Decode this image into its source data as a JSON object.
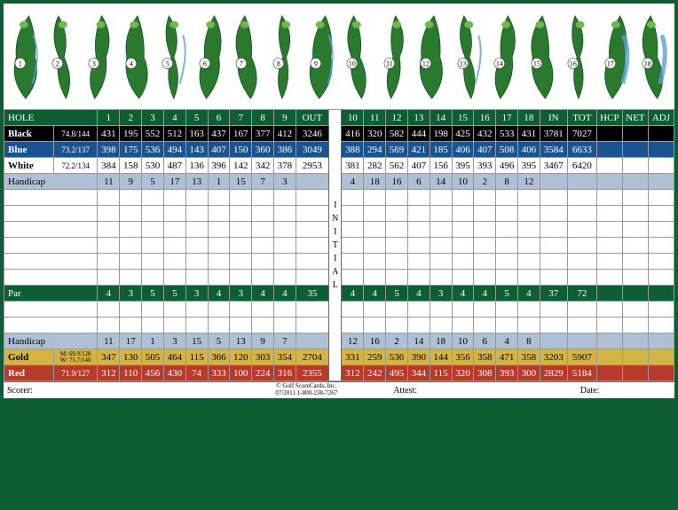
{
  "colors": {
    "header_green": "#0d5f33",
    "black_row": "#000000",
    "blue_row": "#1a5490",
    "white_row": "#ffffff",
    "handicap_row": "#b0c0d4",
    "par_row": "#0d5f33",
    "gold_row": "#d4b444",
    "red_row": "#b83a2a",
    "initial_bg": "#ffffff",
    "border": "#999999"
  },
  "header": {
    "label": "HOLE",
    "out": "OUT",
    "in": "IN",
    "tot": "TOT",
    "hcp": "HCP",
    "net": "NET",
    "adj": "ADJ",
    "initial": "INITIAL"
  },
  "holes_front": [
    "1",
    "2",
    "3",
    "4",
    "5",
    "6",
    "7",
    "8",
    "9"
  ],
  "holes_back": [
    "10",
    "11",
    "12",
    "13",
    "14",
    "15",
    "16",
    "17",
    "18"
  ],
  "tees": {
    "black": {
      "label": "Black",
      "rating": "74.8/144",
      "front": [
        "431",
        "195",
        "552",
        "512",
        "163",
        "437",
        "167",
        "377",
        "412"
      ],
      "out": "3246",
      "back": [
        "416",
        "320",
        "582",
        "444",
        "198",
        "425",
        "432",
        "533",
        "431"
      ],
      "in": "3781",
      "tot": "7027"
    },
    "blue": {
      "label": "Blue",
      "rating": "73.2/137",
      "front": [
        "398",
        "175",
        "536",
        "494",
        "143",
        "407",
        "150",
        "360",
        "386"
      ],
      "out": "3049",
      "back": [
        "388",
        "294",
        "569",
        "421",
        "185",
        "406",
        "407",
        "508",
        "406"
      ],
      "in": "3584",
      "tot": "6633"
    },
    "white": {
      "label": "White",
      "rating": "72.2/134",
      "front": [
        "384",
        "158",
        "530",
        "487",
        "136",
        "396",
        "142",
        "342",
        "378"
      ],
      "out": "2953",
      "back": [
        "381",
        "282",
        "562",
        "407",
        "156",
        "395",
        "393",
        "496",
        "395"
      ],
      "in": "3467",
      "tot": "6420"
    },
    "gold": {
      "label": "Gold",
      "rating": "M: 69.9/128\nW: 75.7/140",
      "front": [
        "347",
        "130",
        "505",
        "464",
        "115",
        "366",
        "120",
        "303",
        "354"
      ],
      "out": "2704",
      "back": [
        "331",
        "259",
        "536",
        "390",
        "144",
        "356",
        "358",
        "471",
        "358"
      ],
      "in": "3203",
      "tot": "5907"
    },
    "red": {
      "label": "Red",
      "rating": "71.9/127",
      "front": [
        "312",
        "110",
        "456",
        "430",
        "74",
        "333",
        "100",
        "224",
        "316"
      ],
      "out": "2355",
      "back": [
        "312",
        "242",
        "495",
        "344",
        "115",
        "320",
        "308",
        "393",
        "300"
      ],
      "in": "2829",
      "tot": "5184"
    }
  },
  "handicap1": {
    "label": "Handicap",
    "front": [
      "11",
      "9",
      "5",
      "17",
      "13",
      "1",
      "15",
      "7",
      "3"
    ],
    "back": [
      "4",
      "18",
      "16",
      "6",
      "14",
      "10",
      "2",
      "8",
      "12"
    ]
  },
  "handicap2": {
    "label": "Handicap",
    "front": [
      "11",
      "17",
      "1",
      "3",
      "15",
      "5",
      "13",
      "9",
      "7"
    ],
    "back": [
      "12",
      "16",
      "2",
      "14",
      "18",
      "10",
      "6",
      "4",
      "8"
    ]
  },
  "par": {
    "label": "Par",
    "front": [
      "4",
      "3",
      "5",
      "5",
      "3",
      "4",
      "3",
      "4",
      "4"
    ],
    "out": "35",
    "back": [
      "4",
      "4",
      "5",
      "4",
      "3",
      "4",
      "4",
      "5",
      "4"
    ],
    "in": "37",
    "tot": "72"
  },
  "footer": {
    "scorer": "Scorer:",
    "attest": "Attest:",
    "date": "Date:",
    "copy1": "© Golf ScoreCards, Inc.",
    "copy2": "07/2011  1-800-238-7267"
  },
  "empty_rows_mid": 6,
  "empty_rows_after_par": 2
}
